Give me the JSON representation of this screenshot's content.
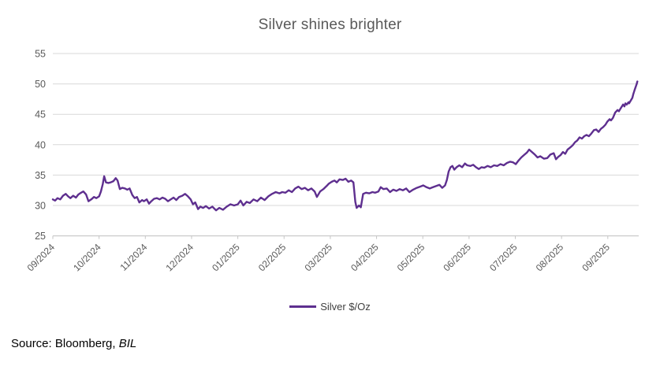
{
  "title": "Silver shines brighter",
  "legend": {
    "label": "Silver $/Oz"
  },
  "source": {
    "prefix": "Source: Bloomberg, ",
    "italic": "BIL"
  },
  "colors": {
    "line": "#5E2F8F",
    "grid": "#D9D9D9",
    "axis": "#C6C6C6",
    "title_text": "#595959",
    "tick_text": "#595959",
    "legend_text": "#3f3f3f",
    "source_text": "#000000"
  },
  "chart_data": {
    "type": "line",
    "title": "Silver shines brighter",
    "xlabel": "",
    "ylabel": "",
    "ylim": [
      25,
      55
    ],
    "yticks": [
      25,
      30,
      35,
      40,
      45,
      50,
      55
    ],
    "xticks": [
      "09/2024",
      "10/2024",
      "11/2024",
      "12/2024",
      "01/2025",
      "02/2025",
      "03/2025",
      "04/2025",
      "05/2025",
      "06/2025",
      "07/2025",
      "08/2025",
      "09/2025"
    ],
    "grid": "horizontal",
    "legend_position": "bottom",
    "legend": [
      "Silver $/Oz"
    ],
    "x_unit": "months after 09/2024 tick (fractional, daily prices)",
    "series": [
      {
        "name": "Silver $/Oz",
        "color": "#5E2F8F",
        "points": [
          [
            0.0,
            31.0
          ],
          [
            0.05,
            30.8
          ],
          [
            0.1,
            31.2
          ],
          [
            0.16,
            31.0
          ],
          [
            0.22,
            31.6
          ],
          [
            0.28,
            31.9
          ],
          [
            0.33,
            31.5
          ],
          [
            0.38,
            31.2
          ],
          [
            0.44,
            31.6
          ],
          [
            0.5,
            31.3
          ],
          [
            0.55,
            31.8
          ],
          [
            0.61,
            32.1
          ],
          [
            0.66,
            32.3
          ],
          [
            0.72,
            31.8
          ],
          [
            0.77,
            30.7
          ],
          [
            0.83,
            31.0
          ],
          [
            0.89,
            31.4
          ],
          [
            0.94,
            31.2
          ],
          [
            1.0,
            31.5
          ],
          [
            1.04,
            32.3
          ],
          [
            1.08,
            33.5
          ],
          [
            1.11,
            34.8
          ],
          [
            1.15,
            33.8
          ],
          [
            1.2,
            33.7
          ],
          [
            1.25,
            33.8
          ],
          [
            1.31,
            34.0
          ],
          [
            1.36,
            34.5
          ],
          [
            1.4,
            34.1
          ],
          [
            1.45,
            32.7
          ],
          [
            1.5,
            32.9
          ],
          [
            1.56,
            32.8
          ],
          [
            1.61,
            32.6
          ],
          [
            1.66,
            32.8
          ],
          [
            1.72,
            31.7
          ],
          [
            1.77,
            31.2
          ],
          [
            1.82,
            31.4
          ],
          [
            1.87,
            30.5
          ],
          [
            1.93,
            30.9
          ],
          [
            1.97,
            30.7
          ],
          [
            2.03,
            31.0
          ],
          [
            2.08,
            30.3
          ],
          [
            2.13,
            30.7
          ],
          [
            2.19,
            31.1
          ],
          [
            2.25,
            31.2
          ],
          [
            2.31,
            31.0
          ],
          [
            2.37,
            31.3
          ],
          [
            2.43,
            31.1
          ],
          [
            2.49,
            30.7
          ],
          [
            2.55,
            31.0
          ],
          [
            2.61,
            31.3
          ],
          [
            2.67,
            30.9
          ],
          [
            2.73,
            31.4
          ],
          [
            2.8,
            31.6
          ],
          [
            2.86,
            31.9
          ],
          [
            2.92,
            31.5
          ],
          [
            2.98,
            31.0
          ],
          [
            3.03,
            30.2
          ],
          [
            3.08,
            30.5
          ],
          [
            3.14,
            29.4
          ],
          [
            3.19,
            29.8
          ],
          [
            3.25,
            29.6
          ],
          [
            3.31,
            29.9
          ],
          [
            3.38,
            29.5
          ],
          [
            3.45,
            29.8
          ],
          [
            3.53,
            29.2
          ],
          [
            3.6,
            29.6
          ],
          [
            3.68,
            29.3
          ],
          [
            3.76,
            29.8
          ],
          [
            3.84,
            30.2
          ],
          [
            3.92,
            30.0
          ],
          [
            4.0,
            30.2
          ],
          [
            4.06,
            30.8
          ],
          [
            4.12,
            30.0
          ],
          [
            4.19,
            30.6
          ],
          [
            4.26,
            30.4
          ],
          [
            4.34,
            31.0
          ],
          [
            4.42,
            30.7
          ],
          [
            4.5,
            31.3
          ],
          [
            4.58,
            30.9
          ],
          [
            4.66,
            31.5
          ],
          [
            4.74,
            31.9
          ],
          [
            4.82,
            32.2
          ],
          [
            4.9,
            32.0
          ],
          [
            4.96,
            32.2
          ],
          [
            5.03,
            32.1
          ],
          [
            5.1,
            32.5
          ],
          [
            5.17,
            32.2
          ],
          [
            5.24,
            32.8
          ],
          [
            5.31,
            33.1
          ],
          [
            5.38,
            32.7
          ],
          [
            5.45,
            32.9
          ],
          [
            5.52,
            32.5
          ],
          [
            5.59,
            32.8
          ],
          [
            5.66,
            32.3
          ],
          [
            5.71,
            31.4
          ],
          [
            5.78,
            32.3
          ],
          [
            5.85,
            32.7
          ],
          [
            5.92,
            33.2
          ],
          [
            5.97,
            33.6
          ],
          [
            6.03,
            33.9
          ],
          [
            6.09,
            34.1
          ],
          [
            6.14,
            33.8
          ],
          [
            6.2,
            34.3
          ],
          [
            6.27,
            34.2
          ],
          [
            6.33,
            34.4
          ],
          [
            6.39,
            33.9
          ],
          [
            6.45,
            34.1
          ],
          [
            6.5,
            33.8
          ],
          [
            6.54,
            30.6
          ],
          [
            6.57,
            29.6
          ],
          [
            6.62,
            30.0
          ],
          [
            6.66,
            29.7
          ],
          [
            6.71,
            31.9
          ],
          [
            6.77,
            32.1
          ],
          [
            6.84,
            32.0
          ],
          [
            6.91,
            32.2
          ],
          [
            6.97,
            32.1
          ],
          [
            7.04,
            32.3
          ],
          [
            7.09,
            33.0
          ],
          [
            7.15,
            32.7
          ],
          [
            7.22,
            32.8
          ],
          [
            7.29,
            32.2
          ],
          [
            7.36,
            32.6
          ],
          [
            7.43,
            32.4
          ],
          [
            7.5,
            32.7
          ],
          [
            7.57,
            32.5
          ],
          [
            7.64,
            32.8
          ],
          [
            7.71,
            32.2
          ],
          [
            7.79,
            32.6
          ],
          [
            7.87,
            32.9
          ],
          [
            7.94,
            33.1
          ],
          [
            8.01,
            33.3
          ],
          [
            8.08,
            33.0
          ],
          [
            8.15,
            32.8
          ],
          [
            8.22,
            33.0
          ],
          [
            8.29,
            33.2
          ],
          [
            8.36,
            33.4
          ],
          [
            8.42,
            32.9
          ],
          [
            8.48,
            33.3
          ],
          [
            8.52,
            34.2
          ],
          [
            8.56,
            35.6
          ],
          [
            8.6,
            36.3
          ],
          [
            8.64,
            36.5
          ],
          [
            8.68,
            35.9
          ],
          [
            8.73,
            36.3
          ],
          [
            8.79,
            36.6
          ],
          [
            8.85,
            36.3
          ],
          [
            8.91,
            36.9
          ],
          [
            8.96,
            36.6
          ],
          [
            9.03,
            36.5
          ],
          [
            9.09,
            36.7
          ],
          [
            9.15,
            36.3
          ],
          [
            9.21,
            36.0
          ],
          [
            9.27,
            36.3
          ],
          [
            9.33,
            36.2
          ],
          [
            9.4,
            36.5
          ],
          [
            9.47,
            36.3
          ],
          [
            9.54,
            36.6
          ],
          [
            9.61,
            36.5
          ],
          [
            9.68,
            36.8
          ],
          [
            9.75,
            36.6
          ],
          [
            9.82,
            37.0
          ],
          [
            9.89,
            37.2
          ],
          [
            9.95,
            37.1
          ],
          [
            10.01,
            36.8
          ],
          [
            10.07,
            37.4
          ],
          [
            10.13,
            37.9
          ],
          [
            10.19,
            38.3
          ],
          [
            10.25,
            38.7
          ],
          [
            10.3,
            39.2
          ],
          [
            10.36,
            38.8
          ],
          [
            10.42,
            38.4
          ],
          [
            10.48,
            37.9
          ],
          [
            10.54,
            38.1
          ],
          [
            10.62,
            37.7
          ],
          [
            10.69,
            37.8
          ],
          [
            10.76,
            38.4
          ],
          [
            10.83,
            38.6
          ],
          [
            10.88,
            37.6
          ],
          [
            10.93,
            38.0
          ],
          [
            10.98,
            38.3
          ],
          [
            11.03,
            38.8
          ],
          [
            11.08,
            38.5
          ],
          [
            11.13,
            39.2
          ],
          [
            11.18,
            39.5
          ],
          [
            11.24,
            39.9
          ],
          [
            11.29,
            40.4
          ],
          [
            11.34,
            40.7
          ],
          [
            11.39,
            41.2
          ],
          [
            11.44,
            41.0
          ],
          [
            11.49,
            41.4
          ],
          [
            11.54,
            41.6
          ],
          [
            11.59,
            41.4
          ],
          [
            11.64,
            41.8
          ],
          [
            11.7,
            42.4
          ],
          [
            11.75,
            42.5
          ],
          [
            11.8,
            42.1
          ],
          [
            11.85,
            42.6
          ],
          [
            11.9,
            42.9
          ],
          [
            11.95,
            43.3
          ],
          [
            11.99,
            43.8
          ],
          [
            12.04,
            44.2
          ],
          [
            12.07,
            44.0
          ],
          [
            12.11,
            44.4
          ],
          [
            12.16,
            45.3
          ],
          [
            12.21,
            45.7
          ],
          [
            12.24,
            45.5
          ],
          [
            12.28,
            46.0
          ],
          [
            12.33,
            46.6
          ],
          [
            12.36,
            46.3
          ],
          [
            12.38,
            46.8
          ],
          [
            12.41,
            46.6
          ],
          [
            12.45,
            47.0
          ],
          [
            12.46,
            46.8
          ],
          [
            12.5,
            47.3
          ],
          [
            12.53,
            47.7
          ],
          [
            12.55,
            48.3
          ],
          [
            12.58,
            49.0
          ],
          [
            12.62,
            49.9
          ],
          [
            12.64,
            50.4
          ]
        ]
      }
    ]
  }
}
